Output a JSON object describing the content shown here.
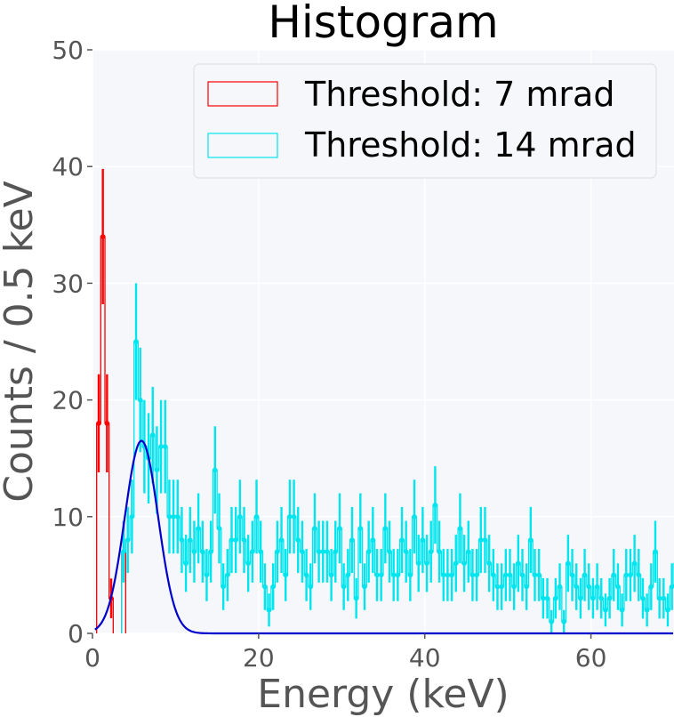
{
  "chart_data": {
    "type": "histogram",
    "title": "Histogram",
    "xlabel": "Energy (keV)",
    "ylabel": "Counts / 0.5 keV",
    "xlim": [
      0,
      70
    ],
    "ylim": [
      0,
      50
    ],
    "x_ticks": [
      "0",
      "20",
      "40",
      "60"
    ],
    "y_ticks": [
      "0",
      "10",
      "20",
      "30",
      "40",
      "50"
    ],
    "grid": true,
    "legend_position": "top-right",
    "bin_width": 0.5,
    "colors": {
      "red_series": "#ff0000",
      "cyan_series": "#00e5ee",
      "fit_curve": "#0000cc",
      "plot_bg": "#f6f7fb",
      "grid": "#ffffff",
      "legend_bg": "#f6f7fb"
    },
    "series": [
      {
        "name": "Threshold: 7 mrad",
        "color": "#ff0000",
        "bins": [
          {
            "x": 0.75,
            "y": 18,
            "err": 4.2
          },
          {
            "x": 1.25,
            "y": 34,
            "err": 5.8
          },
          {
            "x": 1.75,
            "y": 18,
            "err": 4.2
          },
          {
            "x": 2.25,
            "y": 3,
            "err": 1.7
          },
          {
            "x": 3.75,
            "y": 7,
            "err": 2.6
          }
        ]
      },
      {
        "name": "Threshold: 14 mrad",
        "color": "#00e5ee",
        "x_start": 3.75,
        "counts": [
          7,
          8,
          10,
          25,
          20,
          16,
          15,
          17,
          14,
          16,
          16,
          10,
          10,
          10,
          8,
          6,
          8,
          7,
          9,
          7,
          5,
          7,
          14,
          9,
          4,
          5,
          8,
          8,
          10,
          8,
          6,
          7,
          10,
          7,
          4,
          2,
          4,
          7,
          8,
          5,
          10,
          10,
          8,
          7,
          5,
          4,
          9,
          7,
          7,
          7,
          5,
          7,
          9,
          4,
          5,
          8,
          3,
          9,
          4,
          7,
          8,
          5,
          5,
          9,
          7,
          5,
          5,
          8,
          7,
          5,
          10,
          6,
          8,
          6,
          7,
          11,
          7,
          5,
          5,
          5,
          6,
          9,
          6,
          7,
          5,
          5,
          8,
          8,
          6,
          5,
          4,
          4,
          5,
          5,
          4,
          6,
          5,
          4,
          8,
          5,
          5,
          3,
          3,
          1,
          3,
          4,
          1,
          6,
          5,
          4,
          3,
          5,
          4,
          3,
          4,
          3,
          2,
          3,
          5,
          4,
          2,
          5,
          5,
          6,
          5,
          3,
          2,
          4,
          7,
          3,
          3,
          2,
          4,
          6,
          4,
          3,
          4,
          4,
          2,
          3,
          5,
          6,
          5,
          2,
          3,
          3,
          2,
          3,
          4,
          5,
          4,
          4,
          1,
          3,
          4,
          8,
          3,
          5,
          3,
          4,
          5,
          5,
          1,
          3,
          5,
          3,
          3,
          4,
          5,
          5,
          2,
          3,
          4,
          3,
          2,
          5,
          4,
          3,
          2,
          4,
          4,
          3,
          4,
          5,
          5,
          2,
          2,
          5,
          3,
          3,
          3,
          4,
          4,
          4,
          4,
          3,
          4,
          4,
          3,
          5,
          3,
          4,
          4,
          4,
          4,
          5,
          3,
          3,
          3,
          6,
          4,
          3,
          3,
          4,
          2,
          3,
          3,
          4,
          2,
          5,
          4,
          4,
          4,
          3,
          2,
          2,
          3,
          4,
          3,
          4,
          4,
          4,
          3,
          3,
          3,
          2,
          2,
          3,
          3
        ]
      }
    ],
    "fit_curve": {
      "type": "gaussian",
      "amplitude": 16.5,
      "mean": 5.9,
      "sigma": 2.0
    }
  }
}
